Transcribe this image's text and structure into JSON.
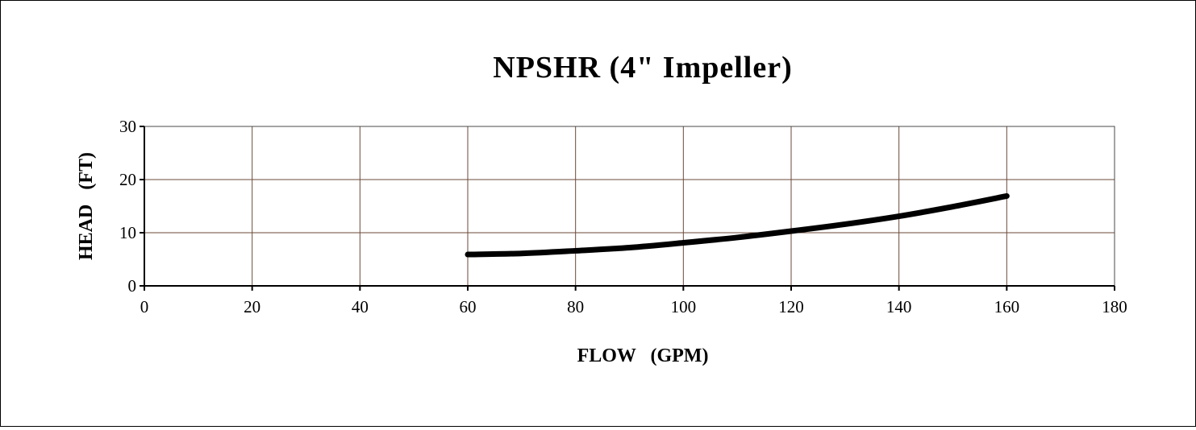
{
  "chart_data": {
    "type": "line",
    "title": "NPSHR (4\" Impeller)",
    "xlabel": "FLOW   (GPM)",
    "ylabel": "HEAD   (FT)",
    "xlim": [
      0,
      180
    ],
    "ylim": [
      0,
      30
    ],
    "x_ticks": [
      0,
      20,
      40,
      60,
      80,
      100,
      120,
      140,
      160,
      180
    ],
    "y_ticks": [
      0,
      10,
      20,
      30
    ],
    "x_tick_labels": [
      "0",
      "20",
      "40",
      "60",
      "80",
      "100",
      "120",
      "140",
      "160",
      "180"
    ],
    "y_tick_labels": [
      "0",
      "10",
      "20",
      "30"
    ],
    "grid": true,
    "series": [
      {
        "color": "#000000",
        "x": [
          60,
          70,
          80,
          90,
          100,
          110,
          120,
          130,
          140,
          150,
          160
        ],
        "y": [
          5.9,
          6.1,
          6.6,
          7.2,
          8.1,
          9.1,
          10.3,
          11.6,
          13.1,
          14.9,
          16.9
        ]
      }
    ]
  }
}
